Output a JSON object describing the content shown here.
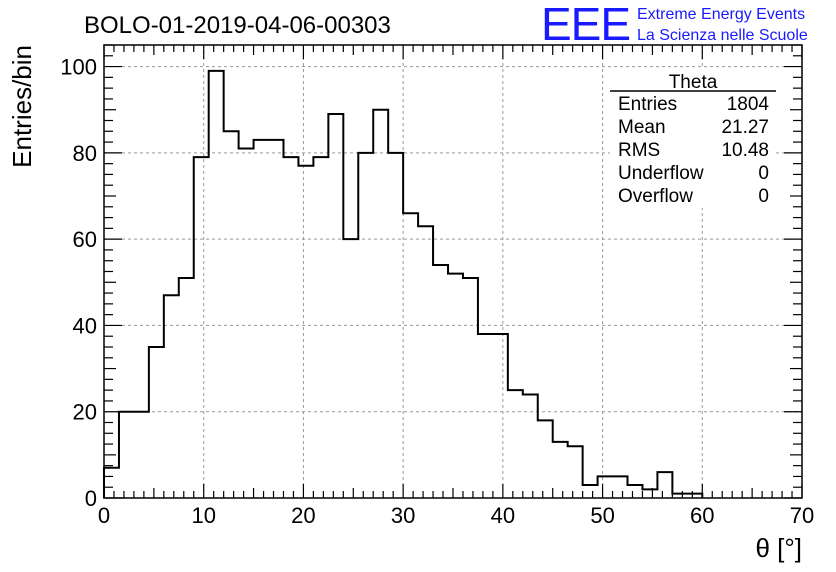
{
  "title": "BOLO-01-2019-04-06-00303",
  "logo": {
    "mark": "EEE",
    "line1": "Extreme Energy Events",
    "line2": "La Scienza nelle Scuole",
    "color": "#1a1aff"
  },
  "stats_box": {
    "name": "Theta",
    "rows": [
      {
        "label": "Entries",
        "value": "1804"
      },
      {
        "label": "Mean",
        "value": "21.27"
      },
      {
        "label": "RMS",
        "value": "10.48"
      },
      {
        "label": "Underflow",
        "value": "0"
      },
      {
        "label": "Overflow",
        "value": "0"
      }
    ]
  },
  "chart_data": {
    "type": "bar",
    "histogram_style": "step",
    "title": "BOLO-01-2019-04-06-00303",
    "xlabel": "θ [°]",
    "ylabel": "Entries/bin",
    "xlim": [
      0,
      70
    ],
    "ylim": [
      0,
      105
    ],
    "grid": true,
    "legend": "top-right",
    "x_ticks": [
      0,
      10,
      20,
      30,
      40,
      50,
      60,
      70
    ],
    "y_ticks": [
      0,
      20,
      40,
      60,
      80,
      100
    ],
    "bin_width": 1.5,
    "bin_edges_start": 0,
    "values": [
      7,
      20,
      20,
      35,
      47,
      51,
      79,
      99,
      85,
      81,
      83,
      83,
      79,
      77,
      79,
      89,
      60,
      80,
      90,
      80,
      66,
      63,
      54,
      52,
      51,
      38,
      38,
      25,
      24,
      18,
      13,
      12,
      3,
      5,
      5,
      3,
      2,
      6,
      1,
      1
    ]
  }
}
